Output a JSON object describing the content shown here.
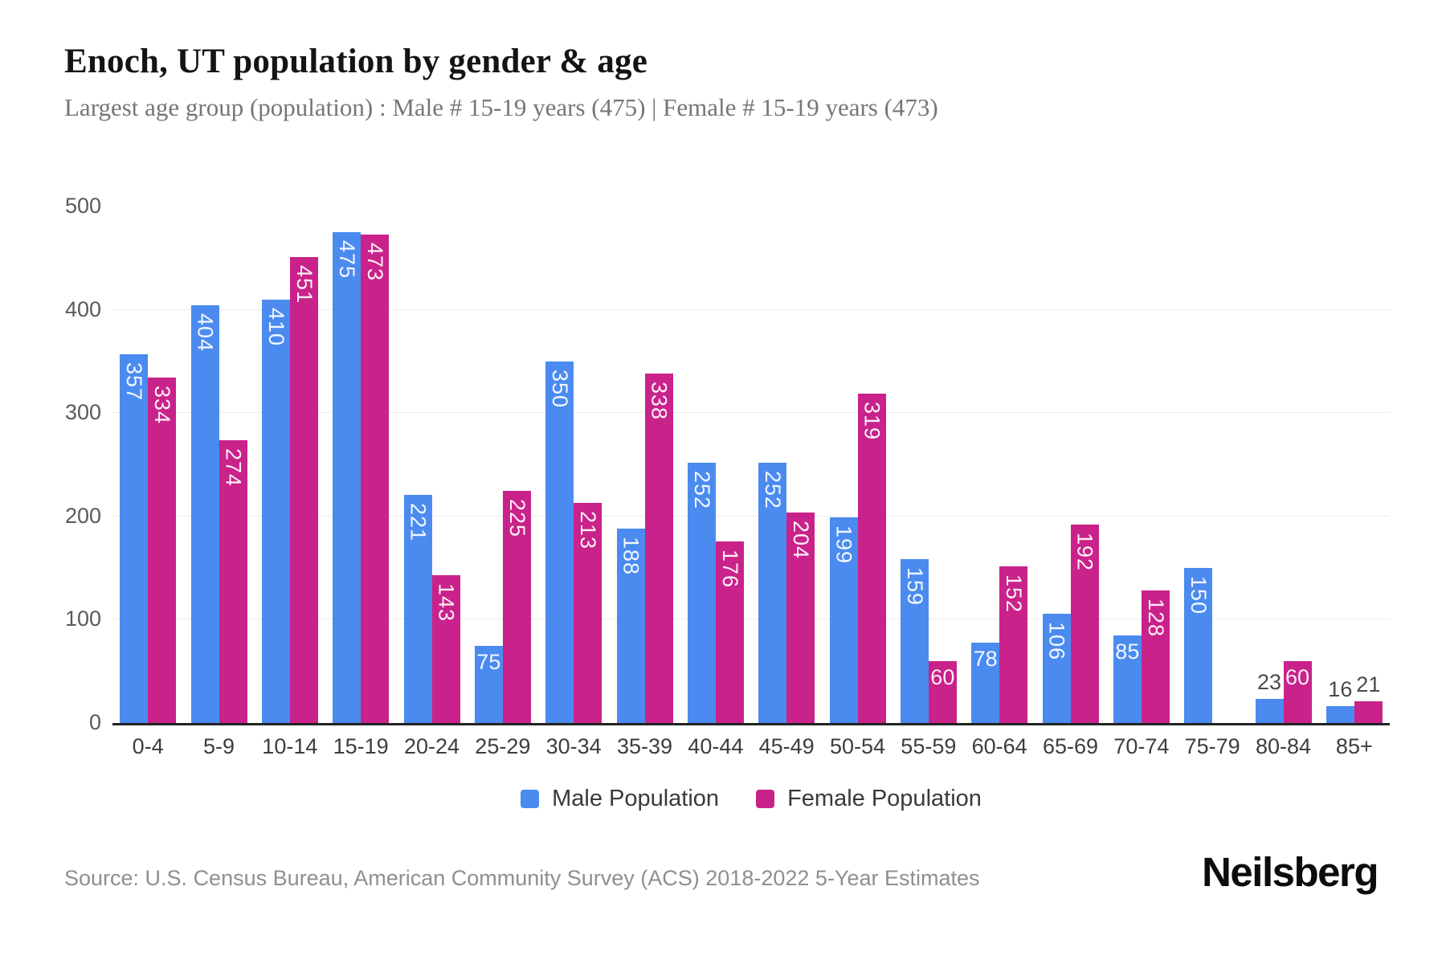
{
  "title": "Enoch, UT population by gender & age",
  "subtitle": "Largest age group (population) : Male # 15-19 years (475) | Female # 15-19 years (473)",
  "source": "Source: U.S. Census Bureau, American Community Survey (ACS) 2018-2022 5-Year Estimates",
  "brand": "Neilsberg",
  "colors": {
    "male": "#4b8bf0",
    "female": "#c9228a",
    "gridline": "#ececec",
    "axis_line": "#222222"
  },
  "chart_data": {
    "type": "bar",
    "title": "Enoch, UT population by gender & age",
    "xlabel": "",
    "ylabel": "",
    "categories": [
      "0-4",
      "5-9",
      "10-14",
      "15-19",
      "20-24",
      "25-29",
      "30-34",
      "35-39",
      "40-44",
      "45-49",
      "50-54",
      "55-59",
      "60-64",
      "65-69",
      "70-74",
      "75-79",
      "80-84",
      "85+"
    ],
    "series": [
      {
        "name": "Male Population",
        "color": "#4b8bf0",
        "values": [
          357,
          404,
          410,
          475,
          221,
          75,
          350,
          188,
          252,
          252,
          199,
          159,
          78,
          106,
          85,
          150,
          23,
          16
        ]
      },
      {
        "name": "Female Population",
        "color": "#c9228a",
        "values": [
          334,
          274,
          451,
          473,
          143,
          225,
          213,
          338,
          176,
          204,
          319,
          60,
          152,
          192,
          128,
          0,
          60,
          21
        ]
      }
    ],
    "ylim": [
      0,
      500
    ],
    "yticks": [
      0,
      100,
      200,
      300,
      400,
      500
    ],
    "grid": true,
    "legend_position": "bottom",
    "value_labels": true
  }
}
